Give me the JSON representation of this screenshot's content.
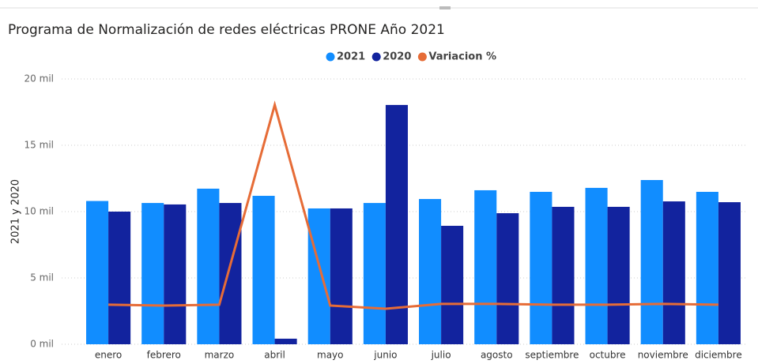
{
  "chart_data": {
    "type": "bar",
    "title": "Programa de Normalización de redes eléctricas PRONE Año 2021",
    "y_label": "2021 y 2020",
    "categories": [
      "enero",
      "febrero",
      "marzo",
      "abril",
      "mayo",
      "junio",
      "julio",
      "agosto",
      "septiembre",
      "octubre",
      "noviembre",
      "diciembre"
    ],
    "series": [
      {
        "name": "2021",
        "type": "bar",
        "color": "#118dff",
        "values": [
          10800,
          10650,
          11730,
          11190,
          10240,
          10650,
          10950,
          11610,
          11490,
          11790,
          12380,
          11490
        ]
      },
      {
        "name": "2020",
        "type": "bar",
        "color": "#12239e",
        "values": [
          10000,
          10540,
          10650,
          420,
          10240,
          18040,
          8930,
          9880,
          10360,
          10360,
          10770,
          10710
        ]
      },
      {
        "name": "Variacion %",
        "type": "line",
        "color": "#e66c37",
        "values": [
          2980,
          2920,
          2980,
          18040,
          2920,
          2680,
          3040,
          3040,
          2980,
          2980,
          3040,
          2980
        ]
      }
    ],
    "ylim": [
      0,
      20000
    ],
    "yticks": [
      {
        "value": 0,
        "label": "0 mil"
      },
      {
        "value": 5000,
        "label": "5 mil"
      },
      {
        "value": 10000,
        "label": "10 mil"
      },
      {
        "value": 15000,
        "label": "15 mil"
      },
      {
        "value": 20000,
        "label": "20 mil"
      }
    ],
    "grid": true,
    "legend": "top"
  }
}
